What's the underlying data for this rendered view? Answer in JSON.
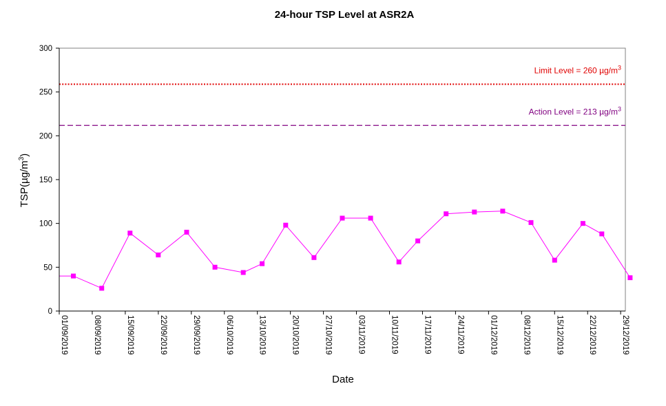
{
  "chart_data": {
    "type": "line",
    "title": "24-hour TSP Level at ASR2A",
    "xlabel": "Date",
    "ylabel_main": "TSP(",
    "ylabel_unit": "µg/m",
    "ylabel_sup": "3",
    "ylabel_close": ")",
    "ylim": [
      0,
      300
    ],
    "yticks": [
      "0",
      "50",
      "100",
      "150",
      "200",
      "250",
      "300"
    ],
    "xlim": [
      "2019-09-01",
      "2019-12-30"
    ],
    "xticks": [
      "01/09/2019",
      "08/09/2019",
      "15/09/2019",
      "22/09/2019",
      "29/09/2019",
      "06/10/2019",
      "13/10/2019",
      "20/10/2019",
      "27/10/2019",
      "03/11/2019",
      "10/11/2019",
      "17/11/2019",
      "24/11/2019",
      "01/12/2019",
      "08/12/2019",
      "15/12/2019",
      "22/12/2019",
      "29/12/2019"
    ],
    "grid": false,
    "series": [
      {
        "color": "#ff00ff",
        "marker": "square",
        "x": [
          "2019-09-01",
          "2019-09-04",
          "2019-09-10",
          "2019-09-16",
          "2019-09-22",
          "2019-09-28",
          "2019-10-04",
          "2019-10-10",
          "2019-10-14",
          "2019-10-19",
          "2019-10-25",
          "2019-10-31",
          "2019-11-06",
          "2019-11-12",
          "2019-11-16",
          "2019-11-22",
          "2019-11-28",
          "2019-12-04",
          "2019-12-10",
          "2019-12-15",
          "2019-12-21",
          "2019-12-25",
          "2019-12-31"
        ],
        "y": [
          40,
          40,
          26,
          89,
          64,
          90,
          50,
          44,
          54,
          98,
          61,
          106,
          106,
          56,
          80,
          111,
          113,
          114,
          101,
          58,
          100,
          88,
          38
        ],
        "marker_from_index": 1
      }
    ],
    "reference_lines": [
      {
        "label": "Limit Level  = 260 ",
        "unit": "µg/m",
        "sup": "3",
        "value": 260,
        "color": "#e00000",
        "style": "dotted"
      },
      {
        "label": "Action Level  = 213 ",
        "unit": "µg/m",
        "sup": "3",
        "value": 213,
        "color": "#800080",
        "style": "dashed"
      }
    ]
  }
}
